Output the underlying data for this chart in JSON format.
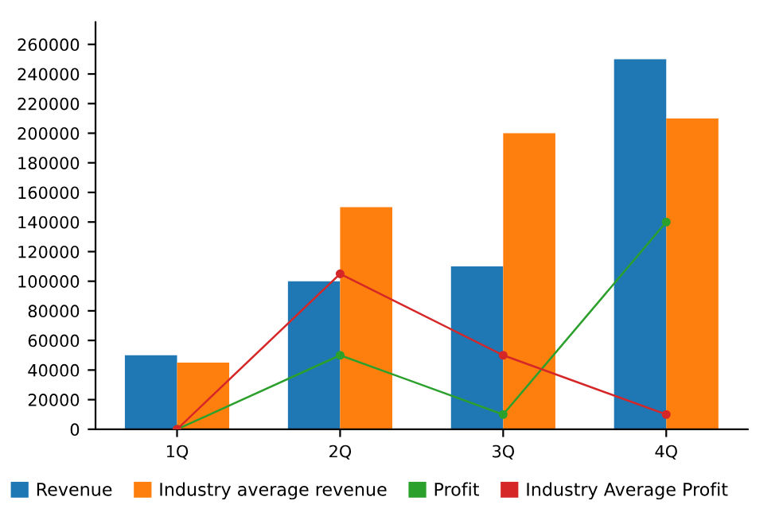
{
  "chart_data": {
    "type": "bar",
    "categories": [
      "1Q",
      "2Q",
      "3Q",
      "4Q"
    ],
    "series": [
      {
        "name": "Revenue",
        "color": "#1f77b4",
        "values": [
          50000,
          100000,
          110000,
          250000
        ]
      },
      {
        "name": "Industry average revenue",
        "color": "#ff7f0e",
        "values": [
          45000,
          150000,
          200000,
          210000
        ]
      },
      {
        "name": "Profit",
        "color": "#2ca02c",
        "type": "line",
        "values": [
          0,
          50000,
          10000,
          140000
        ]
      },
      {
        "name": "Industry Average Profit",
        "color": "#d62728",
        "type": "line",
        "values": [
          0,
          105000,
          50000,
          10000
        ]
      }
    ],
    "ylim": [
      0,
      275000
    ],
    "yticks": [
      0,
      20000,
      40000,
      60000,
      80000,
      100000,
      120000,
      140000,
      160000,
      180000,
      200000,
      220000,
      240000,
      260000
    ],
    "grid": false,
    "legend": "bottom",
    "marker": "circle",
    "line_style": "solid"
  }
}
